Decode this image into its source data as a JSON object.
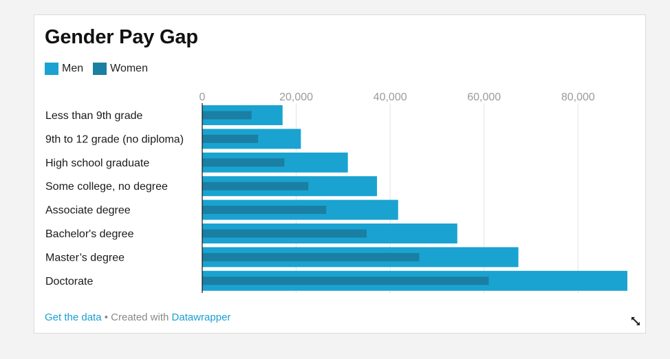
{
  "title": "Gender Pay Gap",
  "legend": {
    "men_label": "Men",
    "women_label": "Women"
  },
  "colors": {
    "men": "#1aa3d0",
    "women": "#1a7fa3",
    "grid": "#e2e2e2",
    "tick_text": "#9a9a9a",
    "label_text": "#1a1a1a",
    "link": "#1a9ed3"
  },
  "chart_data": {
    "type": "bar",
    "orientation": "horizontal",
    "categories": [
      "Less than 9th grade",
      "9th to 12 grade (no diploma)",
      "High school graduate",
      "Some college, no degree",
      "Associate degree",
      "Bachelor's degree",
      "Master’s degree",
      "Doctorate"
    ],
    "series": [
      {
        "name": "Men",
        "values": [
          17100,
          21000,
          31000,
          37200,
          41700,
          54300,
          67300,
          90500
        ]
      },
      {
        "name": "Women",
        "values": [
          10500,
          11900,
          17500,
          22600,
          26400,
          35000,
          46200,
          61000
        ]
      }
    ],
    "xlim": [
      0,
      90500
    ],
    "xticks": [
      0,
      20000,
      40000,
      60000,
      80000
    ],
    "xtick_labels": [
      "0",
      "20,000",
      "40,000",
      "60,000",
      "80,000"
    ],
    "grid": true,
    "legend_position": "top-left"
  },
  "footer": {
    "get_data": "Get the data",
    "separator": " • Created with ",
    "tool": "Datawrapper"
  }
}
